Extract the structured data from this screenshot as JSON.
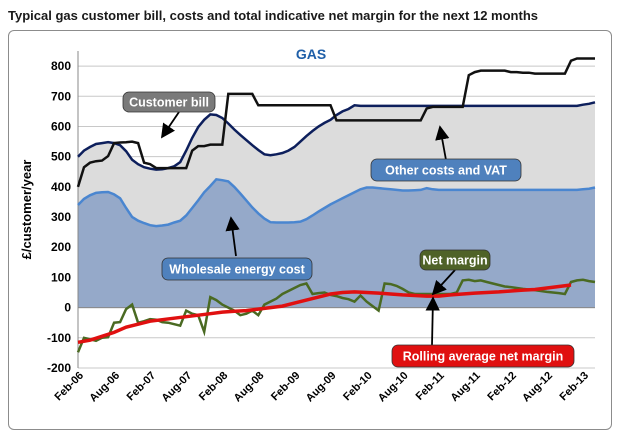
{
  "title": "Typical gas customer bill, costs and total indicative net margin for the next 12 months",
  "chart_data": {
    "type": "area",
    "title": "GAS",
    "ylabel": "£/customer/year",
    "xlabel": "",
    "ylim": [
      -200,
      850
    ],
    "yticks": [
      -200,
      -100,
      0,
      100,
      200,
      300,
      400,
      500,
      600,
      700,
      800
    ],
    "xlim": [
      0,
      86
    ],
    "grid": true,
    "x_tick_labels": [
      "Feb-06",
      "Aug-06",
      "Feb-07",
      "Aug-07",
      "Feb-08",
      "Aug-08",
      "Feb-09",
      "Aug-09",
      "Feb-10",
      "Aug-10",
      "Feb-11",
      "Aug-11",
      "Feb-12",
      "Aug-12",
      "Feb-13"
    ],
    "x_tick_positions": [
      0,
      6,
      12,
      18,
      24,
      30,
      36,
      42,
      48,
      54,
      60,
      66,
      72,
      78,
      84
    ],
    "colors": {
      "customer_bill": "#111111",
      "other_costs_line": "#0d1f5c",
      "other_costs_fill": "#dcdcdc",
      "wholesale_line": "#4a86d0",
      "wholesale_fill": "#95a9c9",
      "net_margin": "#4a6a22",
      "rolling_avg": "#e01010",
      "label_box_grey": "#7a7a7a",
      "label_box_blue": "#4f81bd",
      "label_box_green": "#4f6228",
      "label_box_red": "#e01010",
      "title_blue": "#1f5fa8"
    },
    "annotations": [
      "Customer bill",
      "Other costs and  VAT",
      "Wholesale energy cost",
      "Net margin",
      "Rolling average net margin"
    ],
    "series": [
      {
        "key": "customer_bill",
        "name": "Customer bill",
        "x": [
          0,
          1,
          2,
          3,
          4,
          5,
          6,
          7,
          8,
          9,
          10,
          11,
          12,
          13,
          14,
          15,
          16,
          17,
          18,
          19,
          20,
          21,
          22,
          23,
          24,
          25,
          26,
          27,
          28,
          29,
          30,
          31,
          32,
          33,
          34,
          35,
          36,
          37,
          38,
          39,
          40,
          41,
          42,
          43,
          44,
          45,
          46,
          47,
          48,
          49,
          50,
          51,
          52,
          53,
          54,
          55,
          56,
          57,
          58,
          59,
          60,
          61,
          62,
          63,
          64,
          65,
          66,
          67,
          68,
          69,
          70,
          71,
          72,
          73,
          74,
          75,
          76,
          77,
          78,
          79,
          80,
          81,
          82,
          83,
          84,
          85,
          86
        ],
        "values": [
          400,
          465,
          480,
          485,
          487,
          502,
          545,
          547,
          548,
          550,
          545,
          480,
          475,
          462,
          462,
          462,
          462,
          462,
          462,
          520,
          535,
          535,
          540,
          540,
          540,
          708,
          708,
          708,
          708,
          708,
          670,
          670,
          670,
          670,
          670,
          670,
          670,
          670,
          670,
          670,
          670,
          670,
          670,
          620,
          620,
          620,
          620,
          620,
          620,
          620,
          620,
          620,
          620,
          620,
          620,
          620,
          620,
          620,
          660,
          665,
          665,
          665,
          665,
          665,
          665,
          770,
          780,
          785,
          785,
          785,
          785,
          785,
          780,
          780,
          778,
          778,
          775,
          775,
          775,
          775,
          775,
          775,
          818,
          825,
          825,
          825,
          825
        ]
      },
      {
        "key": "other_costs",
        "name": "Other costs and  VAT",
        "x": [
          0,
          1,
          2,
          3,
          4,
          5,
          6,
          7,
          8,
          9,
          10,
          11,
          12,
          13,
          14,
          15,
          16,
          17,
          18,
          19,
          20,
          21,
          22,
          23,
          24,
          25,
          26,
          27,
          28,
          29,
          30,
          31,
          32,
          33,
          34,
          35,
          36,
          37,
          38,
          39,
          40,
          41,
          42,
          43,
          44,
          45,
          46,
          47,
          48,
          49,
          50,
          51,
          52,
          53,
          54,
          55,
          56,
          57,
          58,
          59,
          60,
          61,
          62,
          63,
          64,
          65,
          66,
          67,
          68,
          69,
          70,
          71,
          72,
          73,
          74,
          75,
          76,
          77,
          78,
          79,
          80,
          81,
          82,
          83,
          84,
          85,
          86
        ],
        "values": [
          500,
          520,
          532,
          542,
          545,
          548,
          545,
          538,
          518,
          490,
          475,
          465,
          460,
          457,
          458,
          462,
          468,
          482,
          520,
          562,
          598,
          622,
          640,
          638,
          628,
          610,
          590,
          572,
          555,
          538,
          522,
          508,
          505,
          508,
          512,
          520,
          532,
          550,
          568,
          585,
          600,
          612,
          622,
          638,
          650,
          658,
          670,
          668,
          668,
          668,
          668,
          668,
          668,
          668,
          668,
          668,
          668,
          668,
          668,
          668,
          668,
          668,
          668,
          668,
          668,
          668,
          668,
          668,
          668,
          668,
          668,
          668,
          668,
          668,
          668,
          668,
          668,
          668,
          668,
          668,
          668,
          668,
          668,
          668,
          672,
          675,
          680
        ]
      },
      {
        "key": "wholesale",
        "name": "Wholesale energy cost",
        "x": [
          0,
          1,
          2,
          3,
          4,
          5,
          6,
          7,
          8,
          9,
          10,
          11,
          12,
          13,
          14,
          15,
          16,
          17,
          18,
          19,
          20,
          21,
          22,
          23,
          24,
          25,
          26,
          27,
          28,
          29,
          30,
          31,
          32,
          33,
          34,
          35,
          36,
          37,
          38,
          39,
          40,
          41,
          42,
          43,
          44,
          45,
          46,
          47,
          48,
          49,
          50,
          51,
          52,
          53,
          54,
          55,
          56,
          57,
          58,
          59,
          60,
          61,
          62,
          63,
          64,
          65,
          66,
          67,
          68,
          69,
          70,
          71,
          72,
          73,
          74,
          75,
          76,
          77,
          78,
          79,
          80,
          81,
          82,
          83,
          84,
          85,
          86
        ],
        "values": [
          340,
          360,
          372,
          380,
          382,
          383,
          375,
          362,
          330,
          300,
          288,
          280,
          273,
          270,
          272,
          275,
          282,
          288,
          305,
          330,
          355,
          382,
          403,
          425,
          422,
          418,
          400,
          378,
          355,
          332,
          312,
          295,
          283,
          282,
          282,
          282,
          283,
          285,
          293,
          305,
          318,
          330,
          342,
          352,
          362,
          372,
          382,
          392,
          398,
          398,
          396,
          394,
          392,
          390,
          388,
          388,
          389,
          390,
          396,
          392,
          390,
          390,
          390,
          390,
          390,
          390,
          390,
          390,
          390,
          390,
          390,
          390,
          390,
          390,
          390,
          390,
          390,
          390,
          390,
          390,
          390,
          390,
          390,
          390,
          392,
          394,
          398
        ]
      },
      {
        "key": "net_margin",
        "name": "Net margin",
        "x": [
          0,
          1,
          2,
          3,
          4,
          5,
          6,
          7,
          8,
          9,
          10,
          11,
          12,
          13,
          14,
          15,
          16,
          17,
          18,
          19,
          20,
          21,
          22,
          23,
          24,
          25,
          26,
          27,
          28,
          29,
          30,
          31,
          32,
          33,
          34,
          35,
          36,
          37,
          38,
          39,
          40,
          41,
          42,
          43,
          44,
          45,
          46,
          47,
          48,
          49,
          50,
          51,
          52,
          53,
          54,
          55,
          56,
          57,
          58,
          59,
          60,
          61,
          62,
          63,
          64,
          65,
          66,
          67,
          68,
          69,
          70,
          71,
          72,
          73,
          74,
          75,
          76,
          77,
          78,
          79,
          80,
          81,
          82,
          83,
          84,
          85,
          86
        ],
        "values": [
          -148,
          -100,
          -105,
          -110,
          -100,
          -98,
          -50,
          -48,
          -5,
          10,
          -50,
          -45,
          -38,
          -40,
          -48,
          -50,
          -55,
          -60,
          -10,
          -20,
          -25,
          -80,
          35,
          25,
          10,
          0,
          -10,
          -25,
          -20,
          -10,
          -25,
          10,
          20,
          30,
          45,
          55,
          65,
          75,
          80,
          45,
          48,
          50,
          42,
          38,
          32,
          28,
          20,
          40,
          20,
          5,
          -10,
          80,
          78,
          72,
          62,
          50,
          45,
          45,
          45,
          45,
          45,
          45,
          45,
          50,
          90,
          92,
          88,
          90,
          85,
          80,
          75,
          70,
          68,
          65,
          62,
          60,
          58,
          55,
          52,
          50,
          48,
          45,
          85,
          90,
          92,
          88,
          85
        ]
      },
      {
        "key": "rolling_avg",
        "name": "Rolling average net margin",
        "x": [
          0,
          2,
          4,
          6,
          8,
          10,
          12,
          14,
          16,
          18,
          20,
          22,
          24,
          26,
          28,
          30,
          32,
          34,
          36,
          38,
          40,
          42,
          44,
          46,
          48,
          50,
          52,
          54,
          56,
          58,
          60,
          62,
          64,
          66,
          68,
          70,
          72,
          74,
          76,
          78,
          80,
          82
        ],
        "values": [
          -115,
          -108,
          -95,
          -82,
          -65,
          -55,
          -45,
          -40,
          -35,
          -30,
          -25,
          -20,
          -15,
          -12,
          -10,
          -5,
          0,
          5,
          15,
          25,
          35,
          45,
          50,
          52,
          50,
          48,
          45,
          42,
          40,
          38,
          38,
          42,
          45,
          48,
          50,
          52,
          55,
          58,
          60,
          65,
          70,
          75
        ]
      }
    ]
  }
}
